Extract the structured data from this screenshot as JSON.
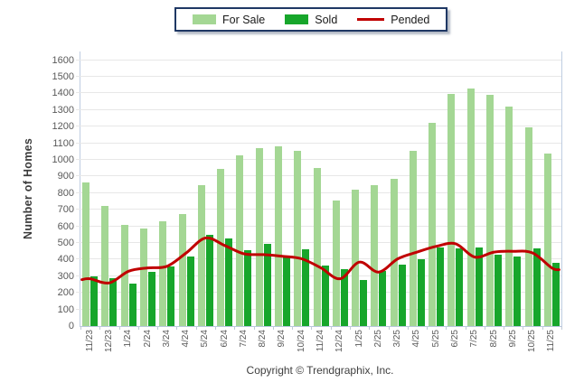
{
  "legend": {
    "for_sale_label": "For Sale",
    "sold_label": "Sold",
    "pended_label": "Pended"
  },
  "y_axis": {
    "title": "Number of Homes",
    "min": 0,
    "max": 1600,
    "step": 100
  },
  "footer": {
    "copyright": "Copyright © Trendgraphix, Inc."
  },
  "colors": {
    "for_sale": "#a4d794",
    "sold": "#17a62b",
    "pended": "#c00000",
    "legend_border": "#1f3864",
    "gridline": "#e7e7e7",
    "plot_border": "#bfcde1",
    "axis_text": "#595959"
  },
  "chart_data": {
    "type": "bar",
    "categories": [
      "11/23",
      "12/23",
      "1/24",
      "2/24",
      "3/24",
      "4/24",
      "5/24",
      "6/24",
      "7/24",
      "8/24",
      "9/24",
      "10/24",
      "11/24",
      "12/24",
      "1/25",
      "2/25",
      "3/25",
      "4/25",
      "5/25",
      "6/25",
      "7/25",
      "8/25",
      "9/25",
      "10/25",
      "11/25"
    ],
    "series": [
      {
        "name": "For Sale",
        "type": "bar",
        "color": "#a4d794",
        "values": [
          865,
          725,
          610,
          585,
          630,
          675,
          850,
          945,
          1025,
          1070,
          1080,
          1055,
          950,
          755,
          820,
          850,
          885,
          1055,
          1225,
          1395,
          1430,
          1390,
          1320,
          1195,
          1040
        ]
      },
      {
        "name": "Sold",
        "type": "bar",
        "color": "#17a62b",
        "values": [
          300,
          290,
          255,
          325,
          360,
          420,
          550,
          525,
          455,
          495,
          415,
          460,
          365,
          340,
          275,
          330,
          370,
          400,
          475,
          465,
          475,
          430,
          420,
          470,
          380
        ]
      },
      {
        "name": "Pended",
        "type": "line",
        "color": "#c00000",
        "values": [
          285,
          260,
          330,
          350,
          360,
          440,
          530,
          485,
          435,
          430,
          420,
          405,
          350,
          285,
          385,
          325,
          405,
          445,
          480,
          495,
          415,
          445,
          450,
          440,
          350
        ]
      }
    ],
    "title": "",
    "xlabel": "",
    "ylabel": "Number of Homes",
    "ylim": [
      0,
      1600
    ],
    "ytick_step": 100,
    "grid": true,
    "legend_position": "top-center"
  }
}
